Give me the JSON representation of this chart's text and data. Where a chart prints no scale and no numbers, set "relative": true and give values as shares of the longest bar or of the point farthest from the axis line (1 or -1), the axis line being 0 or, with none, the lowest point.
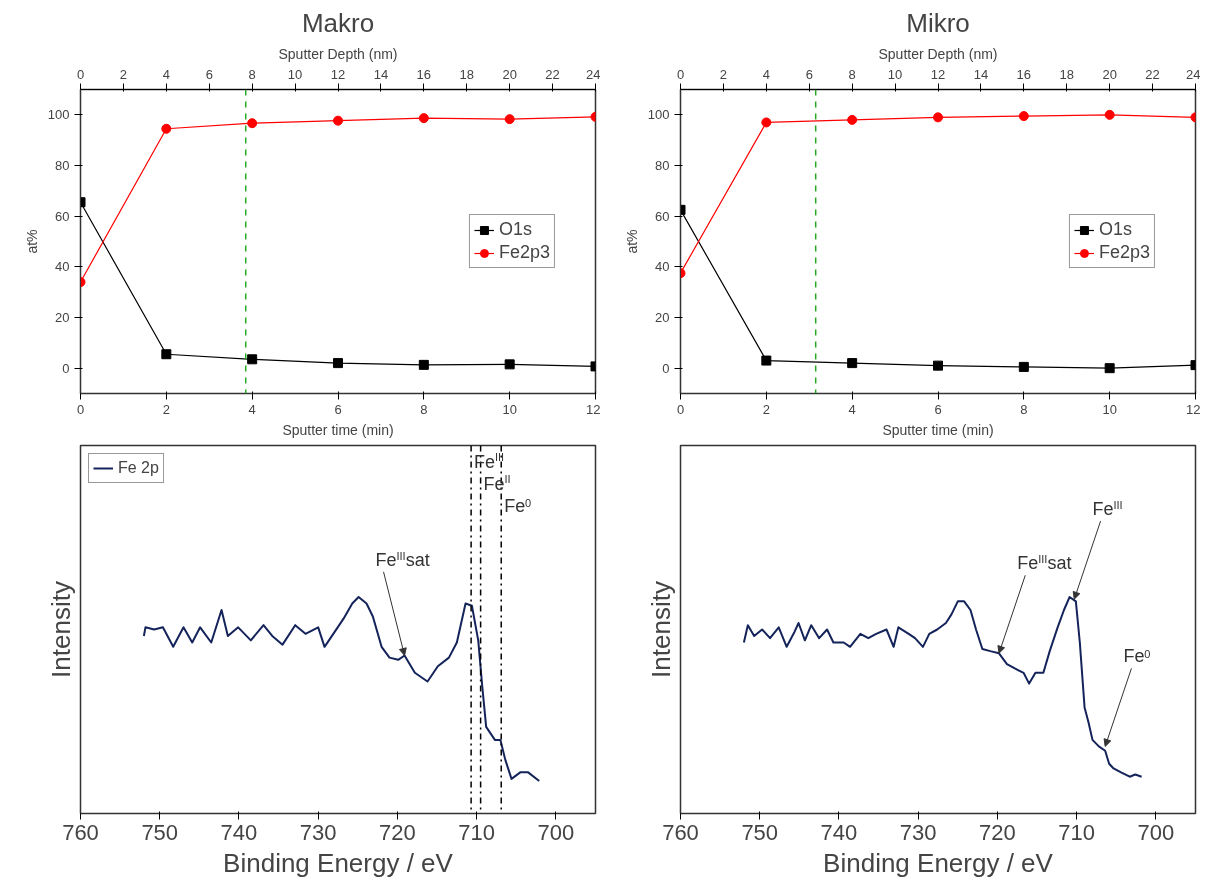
{
  "chart_data": [
    {
      "type": "line",
      "title": "Makro",
      "xlabel": "Sputter time (min)",
      "ylabel": "at%",
      "x2label": "Sputter Depth (nm)",
      "x": [
        0,
        2,
        4,
        6,
        8,
        10,
        12
      ],
      "series": [
        {
          "name": "O1s",
          "color": "#000000",
          "marker": "square",
          "values": [
            65.5,
            5.5,
            3.5,
            2,
            1.3,
            1.5,
            0.7
          ]
        },
        {
          "name": "Fe2p3",
          "color": "#ff0000",
          "marker": "circle",
          "values": [
            34,
            94.5,
            96.7,
            97.7,
            98.7,
            98.3,
            99.2
          ]
        }
      ],
      "xlim": [
        0,
        12
      ],
      "xticks": [
        0,
        2,
        4,
        6,
        8,
        10,
        12
      ],
      "ylim": [
        -10,
        110
      ],
      "yticks": [
        0,
        20,
        40,
        60,
        80,
        100
      ],
      "x2lim": [
        0,
        24
      ],
      "x2ticks": [
        0,
        2,
        4,
        6,
        8,
        10,
        12,
        14,
        16,
        18,
        20,
        22,
        24
      ],
      "ref_lines": [
        {
          "axis": "x",
          "value": 3.85,
          "color": "#22aa22",
          "line_style": "dashed"
        }
      ],
      "legend": "right",
      "grid": false
    },
    {
      "type": "line",
      "title": "Mikro",
      "xlabel": "Sputter time (min)",
      "ylabel": "at%",
      "x2label": "Sputter Depth (nm)",
      "x": [
        0,
        2,
        4,
        6,
        8,
        10,
        12
      ],
      "series": [
        {
          "name": "O1s",
          "color": "#000000",
          "marker": "square",
          "values": [
            62.5,
            3,
            2,
            1,
            0.5,
            0,
            1.2
          ]
        },
        {
          "name": "Fe2p3",
          "color": "#ff0000",
          "marker": "circle",
          "values": [
            37.5,
            97,
            98,
            99,
            99.5,
            100,
            99
          ]
        }
      ],
      "xlim": [
        0,
        12
      ],
      "xticks": [
        0,
        2,
        4,
        6,
        8,
        10,
        12
      ],
      "ylim": [
        -10,
        110
      ],
      "yticks": [
        0,
        20,
        40,
        60,
        80,
        100
      ],
      "x2lim": [
        0,
        24
      ],
      "x2ticks": [
        0,
        2,
        4,
        6,
        8,
        10,
        12,
        14,
        16,
        18,
        20,
        22,
        24
      ],
      "ref_lines": [
        {
          "axis": "x",
          "value": 3.15,
          "color": "#22aa22",
          "line_style": "dashed"
        }
      ],
      "legend": "right",
      "grid": false
    },
    {
      "type": "line",
      "relative": true,
      "xlabel": "Binding Energy / eV",
      "ylabel": "Intensity",
      "tick_labels": "x",
      "xlim": [
        760,
        695
      ],
      "xticks": [
        760,
        750,
        740,
        730,
        720,
        710,
        700
      ],
      "series": [
        {
          "name": "Fe 2p",
          "color": "#14235a",
          "x": [
            752,
            751.8,
            750.7,
            749.6,
            748.3,
            747,
            745.9,
            744.9,
            743.5,
            742.2,
            741.4,
            740.1,
            738.5,
            736.9,
            735.8,
            734.5,
            732.9,
            731.6,
            730,
            729.2,
            727.9,
            726.8,
            725.7,
            724.9,
            723.9,
            723.1,
            722,
            721,
            719.9,
            719.1,
            717.8,
            716.2,
            714.9,
            713.5,
            712.5,
            711.4,
            710.6,
            709.8,
            709.3,
            708.8,
            707.7,
            707,
            706.4,
            705.6,
            704.5,
            703.5,
            702.1
          ],
          "values": [
            0.82,
            0.86,
            0.85,
            0.86,
            0.77,
            0.86,
            0.79,
            0.86,
            0.79,
            0.94,
            0.82,
            0.86,
            0.8,
            0.87,
            0.82,
            0.78,
            0.87,
            0.83,
            0.86,
            0.77,
            0.84,
            0.9,
            0.97,
            1.0,
            0.97,
            0.91,
            0.77,
            0.72,
            0.71,
            0.73,
            0.65,
            0.61,
            0.68,
            0.72,
            0.79,
            0.97,
            0.96,
            0.8,
            0.59,
            0.4,
            0.34,
            0.34,
            0.25,
            0.16,
            0.19,
            0.19,
            0.15
          ]
        }
      ],
      "ref_lines": [
        {
          "axis": "x",
          "value": 710.7,
          "label": "Fe$^{III}$",
          "color": "#000000",
          "line_style": "dashdot"
        },
        {
          "axis": "x",
          "value": 709.5,
          "label": "Fe$^{II}$",
          "color": "#000000",
          "line_style": "dashdot"
        },
        {
          "axis": "x",
          "value": 706.9,
          "label": "Fe$^{0}$",
          "color": "#000000",
          "line_style": "dashdot"
        }
      ],
      "annotations": [
        {
          "text": "Fe$^{III}$sat",
          "x": 719.1,
          "y": 0.73
        }
      ],
      "legend": "top left",
      "grid": false
    },
    {
      "type": "line",
      "relative": true,
      "xlabel": "Binding Energy / eV",
      "ylabel": "Intensity",
      "tick_labels": "x",
      "xlim": [
        760,
        695
      ],
      "xticks": [
        760,
        750,
        740,
        730,
        720,
        710,
        700
      ],
      "series": [
        {
          "color": "#14235a",
          "x": [
            752,
            751.5,
            750.7,
            749.7,
            748.7,
            747.6,
            746.6,
            745.6,
            745.1,
            744.3,
            743.5,
            742.5,
            741.5,
            740.7,
            739.4,
            738.6,
            737.3,
            736.3,
            735.3,
            734,
            733.1,
            732.5,
            731.2,
            730.4,
            729.4,
            728.6,
            727.6,
            726.5,
            725.8,
            725,
            724.2,
            723.4,
            722.7,
            721.9,
            720.9,
            719.8,
            718.8,
            717.8,
            716.7,
            716,
            715.2,
            714.2,
            713.4,
            712.4,
            711.6,
            710.9,
            710.1,
            709.6,
            709,
            708.5,
            708,
            707.2,
            706.4,
            705.9,
            705.4,
            704.4,
            703.3,
            702.6,
            701.8
          ],
          "values": [
            0.79,
            0.87,
            0.82,
            0.85,
            0.81,
            0.86,
            0.77,
            0.84,
            0.88,
            0.8,
            0.87,
            0.81,
            0.85,
            0.79,
            0.79,
            0.77,
            0.83,
            0.81,
            0.83,
            0.85,
            0.77,
            0.86,
            0.83,
            0.81,
            0.77,
            0.83,
            0.85,
            0.88,
            0.92,
            0.98,
            0.98,
            0.94,
            0.85,
            0.76,
            0.75,
            0.74,
            0.69,
            0.67,
            0.65,
            0.6,
            0.65,
            0.65,
            0.75,
            0.86,
            0.94,
            1.0,
            0.98,
            0.79,
            0.49,
            0.42,
            0.34,
            0.31,
            0.29,
            0.23,
            0.21,
            0.19,
            0.17,
            0.18,
            0.17
          ]
        }
      ],
      "annotations": [
        {
          "text": "Fe$^{III}$sat",
          "x": 719.8,
          "y": 0.74
        },
        {
          "text": "Fe$^{III}$",
          "x": 710.3,
          "y": 0.99
        },
        {
          "text": "Fe$^{0}$",
          "x": 706.4,
          "y": 0.31
        }
      ],
      "legend": false,
      "grid": false
    }
  ]
}
